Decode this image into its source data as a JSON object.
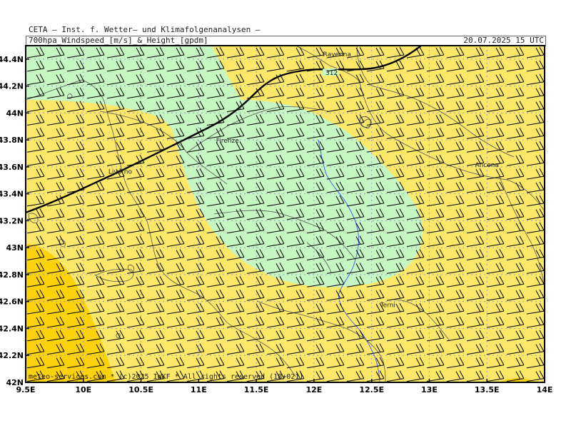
{
  "header": {
    "line1": "CETA — Inst. f. Wetter— und Klimafolgenanalysen —",
    "line2": "700hpa_Windspeed_[m/s]_&_Height_[gpdm]",
    "datetime": "20.07.2025 15 UTC"
  },
  "footer": {
    "copyright": "meteo-services.com * (c)2025 IWKF * All rights reserved (18+021)"
  },
  "map": {
    "lon_range": [
      9.5,
      14.0
    ],
    "lat_range": [
      42.0,
      44.5
    ],
    "lon_ticks": [
      "9.5E",
      "10E",
      "10.5E",
      "11E",
      "11.5E",
      "12E",
      "12.5E",
      "13E",
      "13.5E",
      "14E"
    ],
    "lat_ticks": [
      "42N",
      "42.2N",
      "42.4N",
      "42.6N",
      "42.8N",
      "43N",
      "43.2N",
      "43.4N",
      "43.6N",
      "43.8N",
      "44N",
      "44.2N",
      "44.4N"
    ],
    "cities": [
      {
        "name": "Ravenna",
        "lon": 12.2,
        "lat": 44.42
      },
      {
        "name": "Firenze",
        "lon": 11.25,
        "lat": 43.78
      },
      {
        "name": "Livorno",
        "lon": 10.32,
        "lat": 43.55
      },
      {
        "name": "Ancona",
        "lon": 13.5,
        "lat": 43.6
      },
      {
        "name": "Terni",
        "lon": 12.64,
        "lat": 42.56
      }
    ],
    "contour": {
      "label": "312"
    },
    "colors": {
      "yellow": "#fce868",
      "orange": "#fcd20a",
      "green": "#c6f6c2",
      "grid": "#9aa0c8",
      "coast": "#555555",
      "river": "#3355ff"
    }
  }
}
